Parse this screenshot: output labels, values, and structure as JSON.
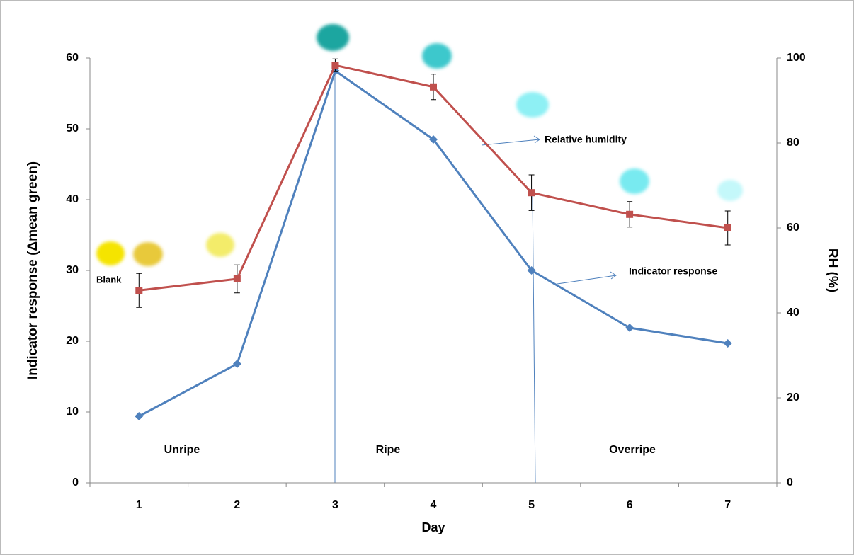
{
  "chart_data": {
    "type": "line",
    "x_label": "Day",
    "y_label": "Indicator response (Δmean green)",
    "y2_label": "RH (%)",
    "categories": [
      "1",
      "2",
      "3",
      "4",
      "5",
      "6",
      "7"
    ],
    "series": [
      {
        "name": "Indicator response",
        "color": "#4f81bd",
        "marker": "diamond",
        "values": [
          9.4,
          16.8,
          58.2,
          48.5,
          30,
          21.9,
          19.7
        ]
      },
      {
        "name": "Relative humidity",
        "color": "#c0504d",
        "marker": "square",
        "axis": "y2",
        "values": [
          45.3,
          48,
          98.3,
          93.2,
          68.3,
          63.2,
          60
        ],
        "errors": [
          4,
          3.3,
          1.5,
          3,
          4.2,
          3,
          4
        ]
      }
    ],
    "ylim": [
      0,
      60
    ],
    "yticks": [
      0,
      10,
      20,
      30,
      40,
      50,
      60
    ],
    "y2lim": [
      0,
      100
    ],
    "y2ticks": [
      0,
      20,
      40,
      60,
      80,
      100
    ],
    "annotations": [
      "Blank",
      "Unripe",
      "Ripe",
      "Overripe"
    ]
  }
}
